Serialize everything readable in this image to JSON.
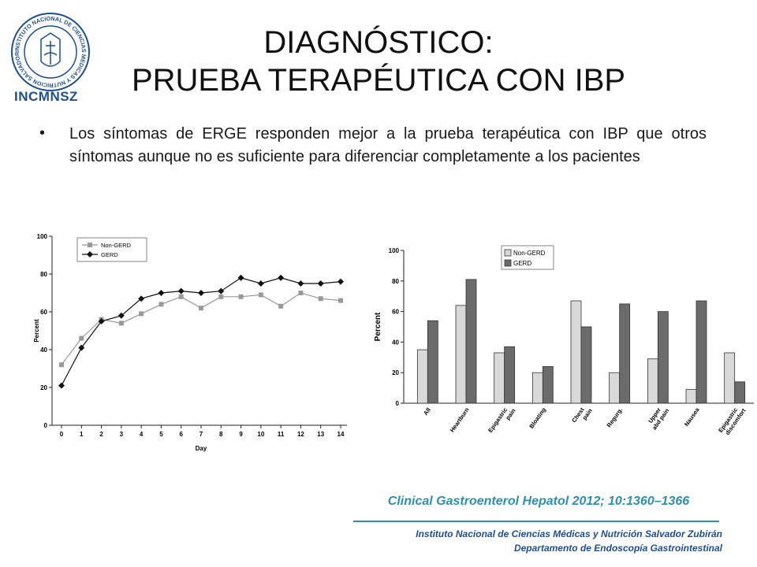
{
  "logo": {
    "text": "INCMNSZ",
    "ring_text": "INSTITUTO NACIONAL DE CIENCIAS MEDICAS Y NUTRICION SALVADOR ZUBIRAN"
  },
  "title": {
    "line1": "DIAGNÓSTICO:",
    "line2": "PRUEBA TERAPÉUTICA CON IBP"
  },
  "bullet": {
    "text": "Los síntomas de ERGE responden mejor a la prueba terapéutica con IBP que otros síntomas aunque no es suficiente para diferenciar completamente a los pacientes"
  },
  "citation": "Clinical Gastroenterol  Hepatol 2012; 10:1360–1366",
  "footer": {
    "line1": "Instituto Nacional de Ciencias Médicas y Nutrición Salvador Zubirán",
    "line2": "Departamento de Endoscopía Gastrointestinal"
  },
  "colors": {
    "title": "#111111",
    "citation": "#2e8fb1",
    "footer": "#1f4e8c",
    "non_gerd": "#999999",
    "gerd_bar": "#6b6b6b",
    "non_gerd_bar": "#d9d9d9"
  },
  "chart_data": [
    {
      "type": "line",
      "xlabel": "Day",
      "ylabel": "Percent",
      "x": [
        0,
        1,
        2,
        3,
        4,
        5,
        6,
        7,
        8,
        9,
        10,
        11,
        12,
        13,
        14
      ],
      "ylim": [
        0,
        100
      ],
      "yticks": [
        0,
        20,
        40,
        60,
        80,
        100
      ],
      "legend": "top-left",
      "series": [
        {
          "name": "Non-GERD",
          "marker": "square",
          "color": "#999999",
          "values": [
            32,
            46,
            56,
            54,
            59,
            64,
            68,
            62,
            68,
            68,
            69,
            63,
            70,
            67,
            66
          ]
        },
        {
          "name": "GERD",
          "marker": "diamond",
          "color": "#111111",
          "values": [
            21,
            41,
            55,
            58,
            67,
            70,
            71,
            70,
            71,
            78,
            75,
            78,
            75,
            75,
            76
          ]
        }
      ]
    },
    {
      "type": "bar",
      "ylabel": "Percent",
      "ylim": [
        0,
        100
      ],
      "yticks": [
        0,
        20,
        40,
        60,
        80,
        100
      ],
      "legend": "top-center",
      "categories": [
        [
          "All"
        ],
        [
          "Heartburn"
        ],
        [
          "Epigastric",
          "pain"
        ],
        [
          "Bloating"
        ],
        [
          "Chest",
          "pain"
        ],
        [
          "Regurg."
        ],
        [
          "Upper",
          "abd pain"
        ],
        [
          "Nausea"
        ],
        [
          "Epigastric",
          "discomfort"
        ]
      ],
      "series": [
        {
          "name": "Non-GERD",
          "color": "#d9d9d9",
          "values": [
            35,
            64,
            33,
            20,
            67,
            20,
            29,
            9,
            33
          ]
        },
        {
          "name": "GERD",
          "color": "#6b6b6b",
          "values": [
            54,
            81,
            37,
            24,
            50,
            65,
            60,
            67,
            14
          ]
        }
      ]
    }
  ]
}
